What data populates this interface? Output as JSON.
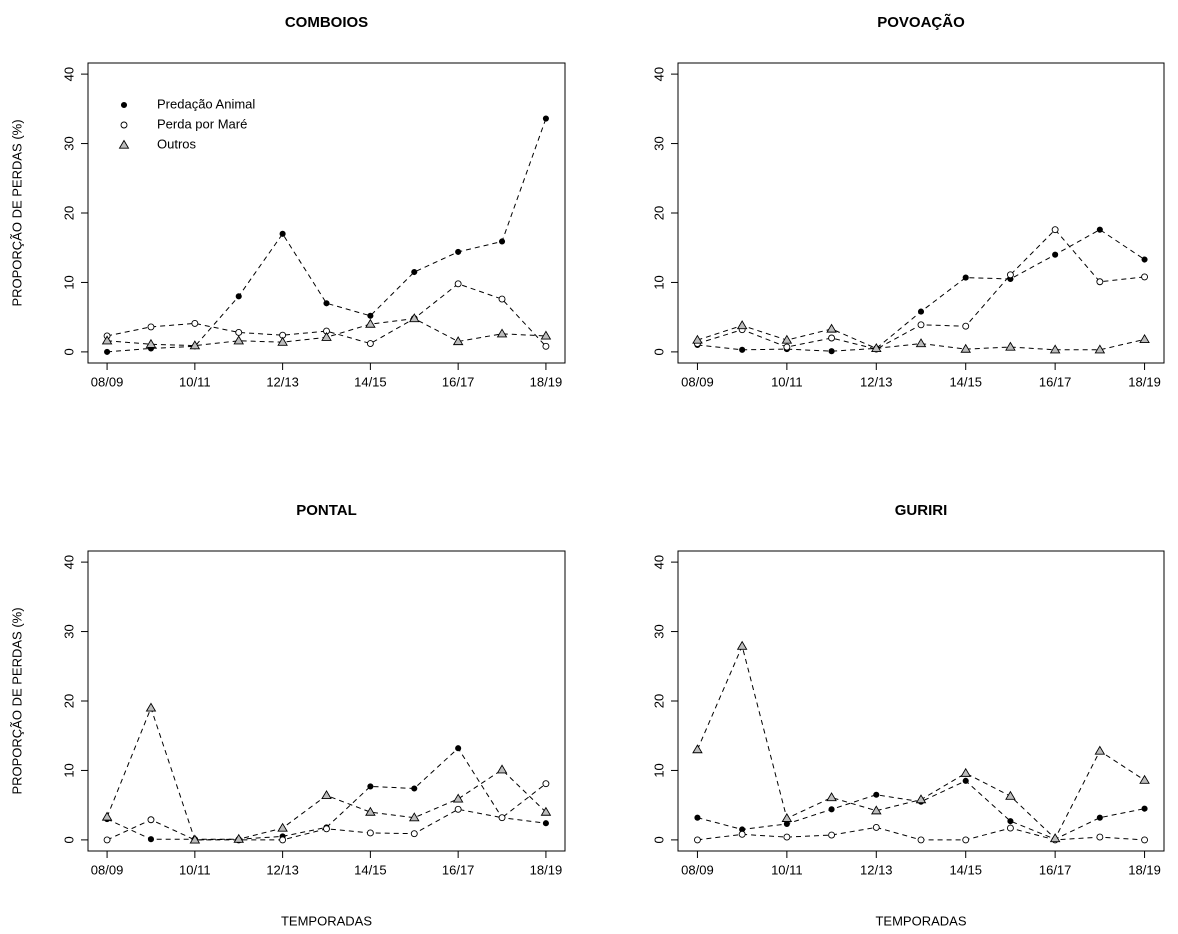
{
  "chart_data": [
    {
      "type": "line",
      "title": "COMBOIOS",
      "ylabel": "PROPORÇÃO DE PERDAS (%)",
      "legend": "top-left",
      "categories": [
        "08/09",
        null,
        "10/11",
        null,
        "12/13",
        null,
        "14/15",
        null,
        "16/17",
        null,
        "18/19"
      ],
      "ylim": [
        -1.6,
        41.6
      ],
      "yticks": [
        0,
        10,
        20,
        30,
        40
      ],
      "series": [
        {
          "name": "Predação Animal",
          "color": "#000000",
          "marker": "filled-circle",
          "values": [
            0,
            0.5,
            0.8,
            8,
            17,
            7,
            5.2,
            11.5,
            14.4,
            15.9,
            33.6
          ]
        },
        {
          "name": "Perda por Maré",
          "color": "#000000",
          "marker": "open-circle",
          "values": [
            2.3,
            3.6,
            4.1,
            2.8,
            2.4,
            3.0,
            1.2,
            4.8,
            9.8,
            7.6,
            0.8
          ]
        },
        {
          "name": "Outros",
          "color": "#000000",
          "marker": "triangle",
          "values": [
            1.6,
            1.1,
            0.9,
            1.6,
            1.4,
            2.1,
            4.0,
            4.8,
            1.5,
            2.6,
            2.3
          ]
        }
      ]
    },
    {
      "type": "line",
      "title": "POVOAÇÃO",
      "categories": [
        "08/09",
        null,
        "10/11",
        null,
        "12/13",
        null,
        "14/15",
        null,
        "16/17",
        null,
        "18/19"
      ],
      "ylim": [
        -1.6,
        41.6
      ],
      "yticks": [
        0,
        10,
        20,
        30,
        40
      ],
      "series": [
        {
          "color": "#000000",
          "marker": "filled-circle",
          "values": [
            1.0,
            0.3,
            0.4,
            0.1,
            0.5,
            5.8,
            10.7,
            10.5,
            14.0,
            17.6,
            13.3
          ]
        },
        {
          "color": "#000000",
          "marker": "open-circle",
          "values": [
            1.2,
            3.2,
            0.7,
            2.0,
            0.4,
            3.9,
            3.7,
            11.1,
            17.6,
            10.1,
            10.8
          ]
        },
        {
          "color": "#000000",
          "marker": "triangle",
          "values": [
            1.7,
            3.8,
            1.7,
            3.3,
            0.5,
            1.2,
            0.4,
            0.7,
            0.3,
            0.3,
            1.8
          ]
        }
      ]
    },
    {
      "type": "line",
      "title": "PONTAL",
      "ylabel": "PROPORÇÃO DE PERDAS (%)",
      "xlabel": "TEMPORADAS",
      "categories": [
        "08/09",
        null,
        "10/11",
        null,
        "12/13",
        null,
        "14/15",
        null,
        "16/17",
        null,
        "18/19"
      ],
      "ylim": [
        -1.6,
        41.6
      ],
      "yticks": [
        0,
        10,
        20,
        30,
        40
      ],
      "series": [
        {
          "color": "#000000",
          "marker": "filled-circle",
          "values": [
            3.0,
            0.1,
            0.1,
            0.1,
            0.5,
            1.8,
            7.7,
            7.4,
            13.2,
            3.2,
            2.4
          ]
        },
        {
          "color": "#000000",
          "marker": "open-circle",
          "values": [
            0,
            2.9,
            0,
            0,
            0,
            1.6,
            1.0,
            0.9,
            4.4,
            3.2,
            8.1
          ]
        },
        {
          "color": "#000000",
          "marker": "triangle",
          "values": [
            3.3,
            19.0,
            0,
            0.1,
            1.7,
            6.4,
            4.0,
            3.2,
            5.9,
            10.1,
            4.0
          ]
        }
      ]
    },
    {
      "type": "line",
      "title": "GURIRI",
      "xlabel": "TEMPORADAS",
      "categories": [
        "08/09",
        null,
        "10/11",
        null,
        "12/13",
        null,
        "14/15",
        null,
        "16/17",
        null,
        "18/19"
      ],
      "ylim": [
        -1.6,
        41.6
      ],
      "yticks": [
        0,
        10,
        20,
        30,
        40
      ],
      "series": [
        {
          "color": "#000000",
          "marker": "filled-circle",
          "values": [
            3.2,
            1.5,
            2.3,
            4.4,
            6.5,
            5.5,
            8.5,
            2.7,
            0.1,
            3.2,
            4.5
          ]
        },
        {
          "color": "#000000",
          "marker": "open-circle",
          "values": [
            0,
            0.8,
            0.4,
            0.7,
            1.8,
            0,
            0,
            1.7,
            0,
            0.4,
            0
          ]
        },
        {
          "color": "#000000",
          "marker": "triangle",
          "values": [
            13.0,
            27.9,
            3.1,
            6.1,
            4.2,
            5.8,
            9.6,
            6.3,
            0.2,
            12.8,
            8.6
          ]
        }
      ]
    }
  ]
}
